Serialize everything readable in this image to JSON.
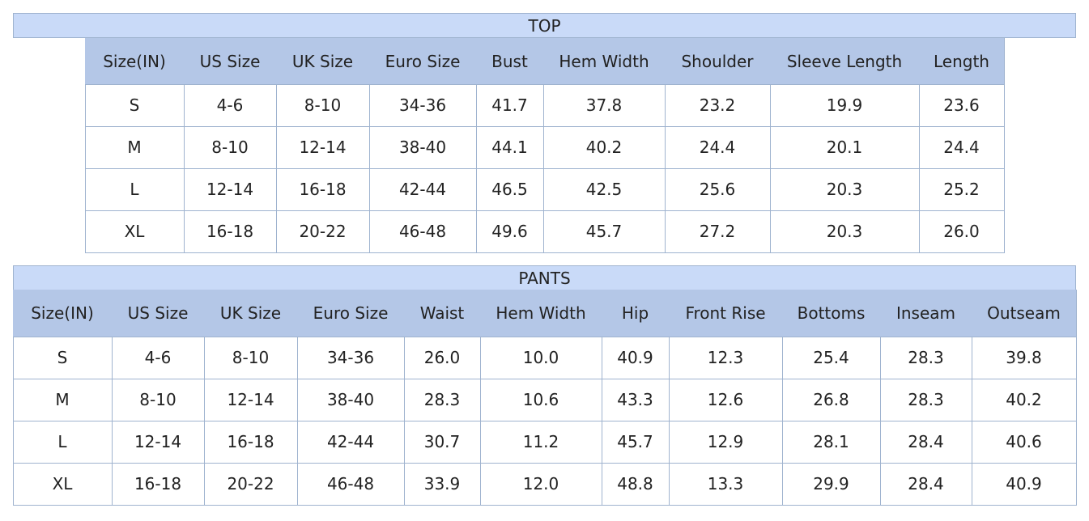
{
  "top": {
    "title": "TOP",
    "headers": [
      "Size(IN)",
      "US Size",
      "UK Size",
      "Euro Size",
      "Bust",
      "Hem Width",
      "Shoulder",
      "Sleeve Length",
      "Length"
    ],
    "rows": [
      [
        "S",
        "4-6",
        "8-10",
        "34-36",
        "41.7",
        "37.8",
        "23.2",
        "19.9",
        "23.6"
      ],
      [
        "M",
        "8-10",
        "12-14",
        "38-40",
        "44.1",
        "40.2",
        "24.4",
        "20.1",
        "24.4"
      ],
      [
        "L",
        "12-14",
        "16-18",
        "42-44",
        "46.5",
        "42.5",
        "25.6",
        "20.3",
        "25.2"
      ],
      [
        "XL",
        "16-18",
        "20-22",
        "46-48",
        "49.6",
        "45.7",
        "27.2",
        "20.3",
        "26.0"
      ]
    ]
  },
  "pants": {
    "title": "PANTS",
    "headers": [
      "Size(IN)",
      "US Size",
      "UK Size",
      "Euro Size",
      "Waist",
      "Hem Width",
      "Hip",
      "Front Rise",
      "Bottoms",
      "Inseam",
      "Outseam"
    ],
    "rows": [
      [
        "S",
        "4-6",
        "8-10",
        "34-36",
        "26.0",
        "10.0",
        "40.9",
        "12.3",
        "25.4",
        "28.3",
        "39.8"
      ],
      [
        "M",
        "8-10",
        "12-14",
        "38-40",
        "28.3",
        "10.6",
        "43.3",
        "12.6",
        "26.8",
        "28.3",
        "40.2"
      ],
      [
        "L",
        "12-14",
        "16-18",
        "42-44",
        "30.7",
        "11.2",
        "45.7",
        "12.9",
        "28.1",
        "28.4",
        "40.6"
      ],
      [
        "XL",
        "16-18",
        "20-22",
        "46-48",
        "33.9",
        "12.0",
        "48.8",
        "13.3",
        "29.9",
        "28.4",
        "40.9"
      ]
    ]
  }
}
